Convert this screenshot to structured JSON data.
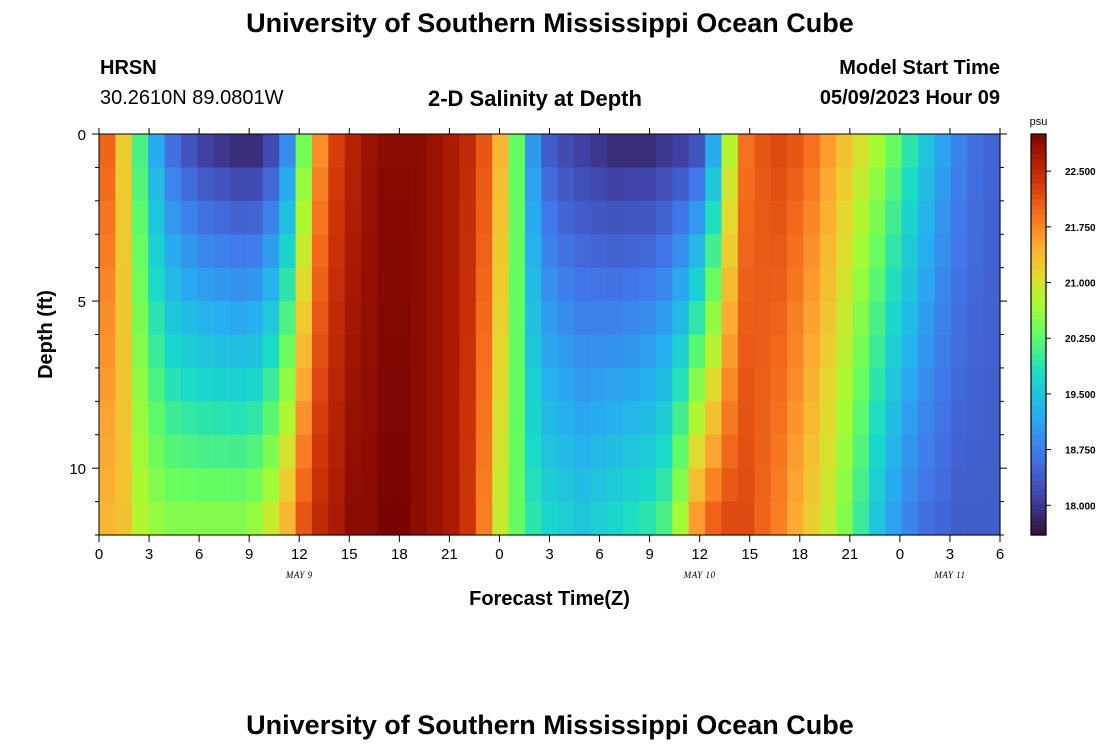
{
  "header": {
    "title": "University of Southern Mississippi Ocean Cube",
    "station": "HRSN",
    "coords": "30.2610N  89.0801W",
    "plot_title": "2-D Salinity at Depth",
    "model_label": "Model Start Time",
    "model_time": "05/09/2023 Hour 09"
  },
  "footer": {
    "title": "University of Southern Mississippi Ocean Cube"
  },
  "chart_data": {
    "type": "heatmap",
    "title": "2-D Salinity at Depth",
    "xlabel": "Forecast Time(Z)",
    "ylabel": "Depth (ft)",
    "x_hours_range": [
      0,
      54
    ],
    "x_tick_labels": [
      "0",
      "3",
      "6",
      "9",
      "12",
      "15",
      "18",
      "21",
      "0",
      "3",
      "6",
      "9",
      "12",
      "15",
      "18",
      "21",
      "0",
      "3",
      "6"
    ],
    "day_labels": [
      {
        "text": "MAY 9",
        "hour": 12
      },
      {
        "text": "MAY 10",
        "hour": 36
      },
      {
        "text": "MAY 11",
        "hour": 51
      }
    ],
    "ylim": [
      0,
      12
    ],
    "y_ticks": [
      0,
      5,
      10
    ],
    "depth_levels": 12,
    "time_steps": 55,
    "colorbar": {
      "label": "psu",
      "min": 17.6,
      "max": 23.0,
      "ticks": [
        "18.000",
        "18.750",
        "19.500",
        "20.250",
        "21.000",
        "21.750",
        "22.500"
      ]
    },
    "surface_salinity": [
      22.0,
      21.2,
      20.1,
      19.2,
      18.6,
      18.3,
      18.1,
      18.0,
      17.9,
      17.9,
      18.2,
      18.9,
      20.4,
      21.7,
      22.3,
      22.6,
      22.8,
      22.9,
      22.9,
      22.9,
      22.8,
      22.7,
      22.5,
      22.1,
      21.4,
      20.3,
      19.0,
      18.4,
      18.2,
      18.1,
      18.0,
      17.9,
      17.9,
      17.9,
      18.0,
      18.1,
      18.3,
      19.2,
      20.8,
      21.9,
      22.1,
      22.2,
      22.1,
      21.9,
      21.6,
      21.3,
      21.0,
      20.7,
      20.3,
      19.9,
      19.5,
      19.1,
      18.8,
      18.6,
      18.5
    ],
    "bottom_salinity": [
      21.4,
      21.3,
      20.8,
      20.6,
      20.5,
      20.5,
      20.5,
      20.5,
      20.5,
      20.6,
      20.9,
      21.4,
      22.1,
      22.5,
      22.7,
      22.9,
      22.9,
      23.0,
      23.0,
      22.9,
      22.8,
      22.7,
      22.4,
      21.8,
      20.9,
      20.3,
      19.9,
      19.7,
      19.6,
      19.5,
      19.6,
      19.7,
      19.8,
      19.9,
      20.1,
      20.7,
      21.6,
      22.0,
      22.2,
      22.2,
      22.0,
      21.8,
      21.5,
      21.2,
      20.9,
      20.5,
      20.0,
      19.5,
      19.1,
      18.8,
      18.6,
      18.5,
      18.4,
      18.4,
      18.4
    ]
  }
}
